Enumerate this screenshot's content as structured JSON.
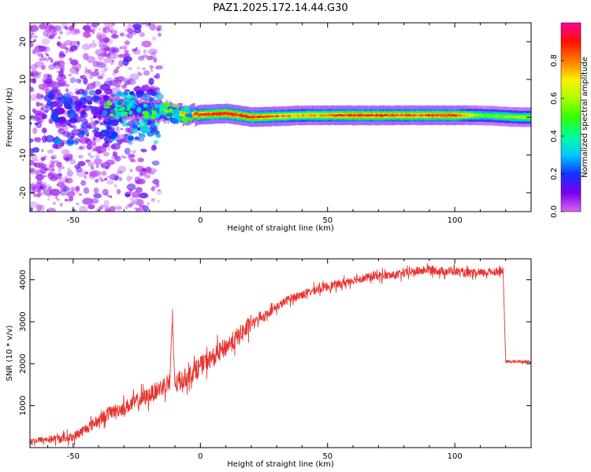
{
  "title": "PAZ1.2025.172.14.44.G30",
  "chart_data": [
    {
      "type": "heatmap",
      "xlabel": "Height of straight line (km)",
      "ylabel": "Frequency (Hz)",
      "xlim": [
        -67,
        130
      ],
      "ylim": [
        -25,
        25
      ],
      "xticks": [
        -50,
        0,
        50,
        100
      ],
      "yticks": [
        -20,
        -10,
        0,
        10,
        20
      ],
      "grid": false,
      "colorbar": {
        "label": "Normalized spectral amplitude",
        "range": [
          0.0,
          1.0
        ],
        "ticks": [
          0.0,
          0.2,
          0.4,
          0.6,
          0.8
        ],
        "colormap": "rainbow (magenta-blue-cyan-green-yellow-red-pink)",
        "position": "right"
      },
      "ridge": {
        "description_points": [
          {
            "x": -45,
            "frequency": 1.0,
            "amplitude": 0.15
          },
          {
            "x": -35,
            "frequency": 2.0,
            "amplitude": 0.25
          },
          {
            "x": -25,
            "frequency": 2.0,
            "amplitude": 0.35
          },
          {
            "x": -15,
            "frequency": 1.5,
            "amplitude": 0.55
          },
          {
            "x": -5,
            "frequency": 0.5,
            "amplitude": 0.85
          },
          {
            "x": 10,
            "frequency": 1.0,
            "amplitude": 0.95
          },
          {
            "x": 20,
            "frequency": 0.0,
            "amplitude": 0.9
          },
          {
            "x": 40,
            "frequency": 0.5,
            "amplitude": 0.75
          },
          {
            "x": 60,
            "frequency": 0.5,
            "amplitude": 0.9
          },
          {
            "x": 80,
            "frequency": 0.5,
            "amplitude": 0.85
          },
          {
            "x": 100,
            "frequency": 0.5,
            "amplitude": 0.9
          },
          {
            "x": 110,
            "frequency": 0.5,
            "amplitude": 0.55
          },
          {
            "x": 125,
            "frequency": 0.0,
            "amplitude": 0.6
          }
        ]
      }
    },
    {
      "type": "line",
      "xlabel": "Height of straight line (km)",
      "ylabel": "SNR (10 * v/v)",
      "xlim": [
        -67,
        130
      ],
      "ylim": [
        0,
        4500
      ],
      "xticks": [
        -50,
        0,
        50,
        100
      ],
      "yticks": [
        1000,
        2000,
        3000,
        4000
      ],
      "grid": false,
      "series": [
        {
          "color": "#e8332e",
          "x": [
            -67,
            -60,
            -55,
            -50,
            -45,
            -40,
            -35,
            -30,
            -25,
            -20,
            -15,
            -12,
            -11,
            -10,
            -5,
            0,
            5,
            10,
            15,
            20,
            25,
            30,
            35,
            40,
            45,
            50,
            55,
            60,
            65,
            70,
            75,
            80,
            85,
            90,
            95,
            100,
            105,
            110,
            115,
            119,
            120,
            125,
            130
          ],
          "values": [
            150,
            200,
            220,
            250,
            450,
            650,
            850,
            950,
            1100,
            1250,
            1450,
            1600,
            3000,
            1500,
            1700,
            1950,
            2150,
            2400,
            2650,
            2950,
            3150,
            3350,
            3550,
            3650,
            3750,
            3850,
            3900,
            4000,
            4050,
            4100,
            4100,
            4150,
            4200,
            4250,
            4200,
            4200,
            4150,
            4150,
            4200,
            4200,
            2050,
            2050,
            2050
          ]
        }
      ]
    }
  ]
}
